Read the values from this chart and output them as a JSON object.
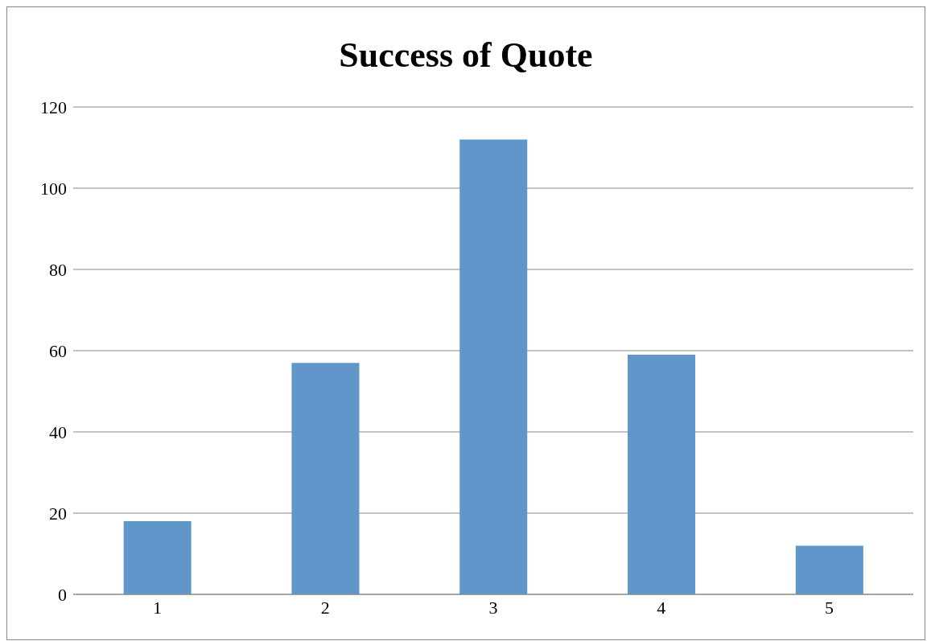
{
  "chart_data": {
    "type": "bar",
    "title": "Success of Quote",
    "categories": [
      "1",
      "2",
      "3",
      "4",
      "5"
    ],
    "values": [
      18,
      57,
      112,
      59,
      12
    ],
    "color": "#6096c9",
    "ylim": [
      0,
      120
    ],
    "yticks": [
      0,
      20,
      40,
      60,
      80,
      100,
      120
    ],
    "grid": "y"
  }
}
